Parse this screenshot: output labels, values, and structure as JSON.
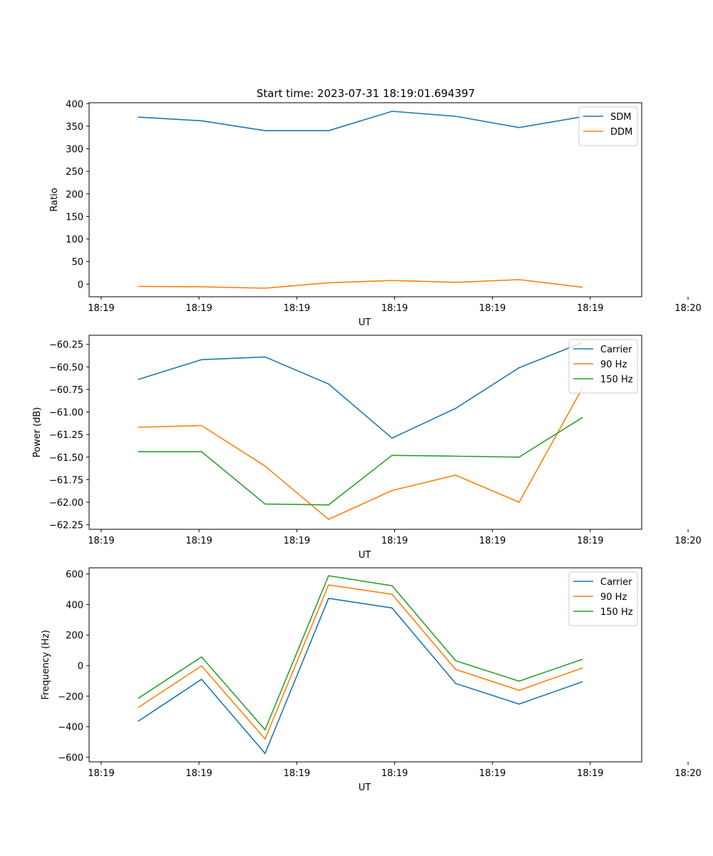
{
  "figure_title": "Start time: 2023-07-31 18:19:01.694397",
  "colors": {
    "blue": "#1f77b4",
    "orange": "#ff7f0e",
    "green": "#2ca02c"
  },
  "chart_data": [
    {
      "type": "line",
      "title": "Start time: 2023-07-31 18:19:01.694397",
      "xlabel": "UT",
      "ylabel": "Ratio",
      "x_tick_labels": [
        "18:19",
        "18:19",
        "18:19",
        "18:19",
        "18:19",
        "18:19",
        "18:20"
      ],
      "y_ticks": [
        0,
        50,
        100,
        150,
        200,
        250,
        300,
        350,
        400
      ],
      "ylim": [
        -28,
        402
      ],
      "x": [
        1,
        2,
        3,
        4,
        5,
        6,
        7,
        8
      ],
      "xlim": [
        0.23,
        8.93
      ],
      "legend_position": "top-right",
      "series": [
        {
          "name": "SDM",
          "color": "#1f77b4",
          "values": [
            370,
            362,
            340,
            340,
            383,
            372,
            347,
            371
          ]
        },
        {
          "name": "DDM",
          "color": "#ff7f0e",
          "values": [
            -5,
            -6,
            -9,
            3,
            8,
            4,
            10,
            -7
          ]
        }
      ]
    },
    {
      "type": "line",
      "xlabel": "UT",
      "ylabel": "Power (dB)",
      "x_tick_labels": [
        "18:19",
        "18:19",
        "18:19",
        "18:19",
        "18:19",
        "18:19",
        "18:20"
      ],
      "y_ticks": [
        -62.25,
        -62.0,
        -61.75,
        -61.5,
        -61.25,
        -61.0,
        -60.75,
        -60.5,
        -60.25
      ],
      "y_tick_labels": [
        "−62.25",
        "−62.00",
        "−61.75",
        "−61.50",
        "−61.25",
        "−61.00",
        "−60.75",
        "−60.50",
        "−60.25"
      ],
      "ylim": [
        -62.3,
        -60.15
      ],
      "x": [
        1,
        2,
        3,
        4,
        5,
        6,
        7,
        8
      ],
      "xlim": [
        0.23,
        8.93
      ],
      "legend_position": "top-right",
      "series": [
        {
          "name": "Carrier",
          "color": "#1f77b4",
          "values": [
            -60.64,
            -60.42,
            -60.39,
            -60.69,
            -61.29,
            -60.96,
            -60.51,
            -60.23
          ]
        },
        {
          "name": "90 Hz",
          "color": "#ff7f0e",
          "values": [
            -61.17,
            -61.15,
            -61.6,
            -62.19,
            -61.87,
            -61.7,
            -62.0,
            -60.73
          ]
        },
        {
          "name": "150 Hz",
          "color": "#2ca02c",
          "values": [
            -61.44,
            -61.44,
            -62.02,
            -62.03,
            -61.48,
            -61.49,
            -61.5,
            -61.06
          ]
        }
      ]
    },
    {
      "type": "line",
      "xlabel": "UT",
      "ylabel": "Frequency (Hz)",
      "x_tick_labels": [
        "18:19",
        "18:19",
        "18:19",
        "18:19",
        "18:19",
        "18:19",
        "18:20"
      ],
      "y_ticks": [
        -600,
        -400,
        -200,
        0,
        200,
        400,
        600
      ],
      "y_tick_labels": [
        "−600",
        "−400",
        "−200",
        "0",
        "200",
        "400",
        "600"
      ],
      "ylim": [
        -630,
        640
      ],
      "x": [
        1,
        2,
        3,
        4,
        5,
        6,
        7,
        8
      ],
      "xlim": [
        0.23,
        8.93
      ],
      "legend_position": "top-right",
      "series": [
        {
          "name": "Carrier",
          "color": "#1f77b4",
          "values": [
            -365,
            -90,
            -575,
            440,
            377,
            -117,
            -252,
            -105
          ]
        },
        {
          "name": "90 Hz",
          "color": "#ff7f0e",
          "values": [
            -275,
            -2,
            -480,
            528,
            467,
            -25,
            -162,
            -15
          ]
        },
        {
          "name": "150 Hz",
          "color": "#2ca02c",
          "values": [
            -215,
            57,
            -420,
            588,
            523,
            32,
            -102,
            42
          ]
        }
      ]
    }
  ]
}
